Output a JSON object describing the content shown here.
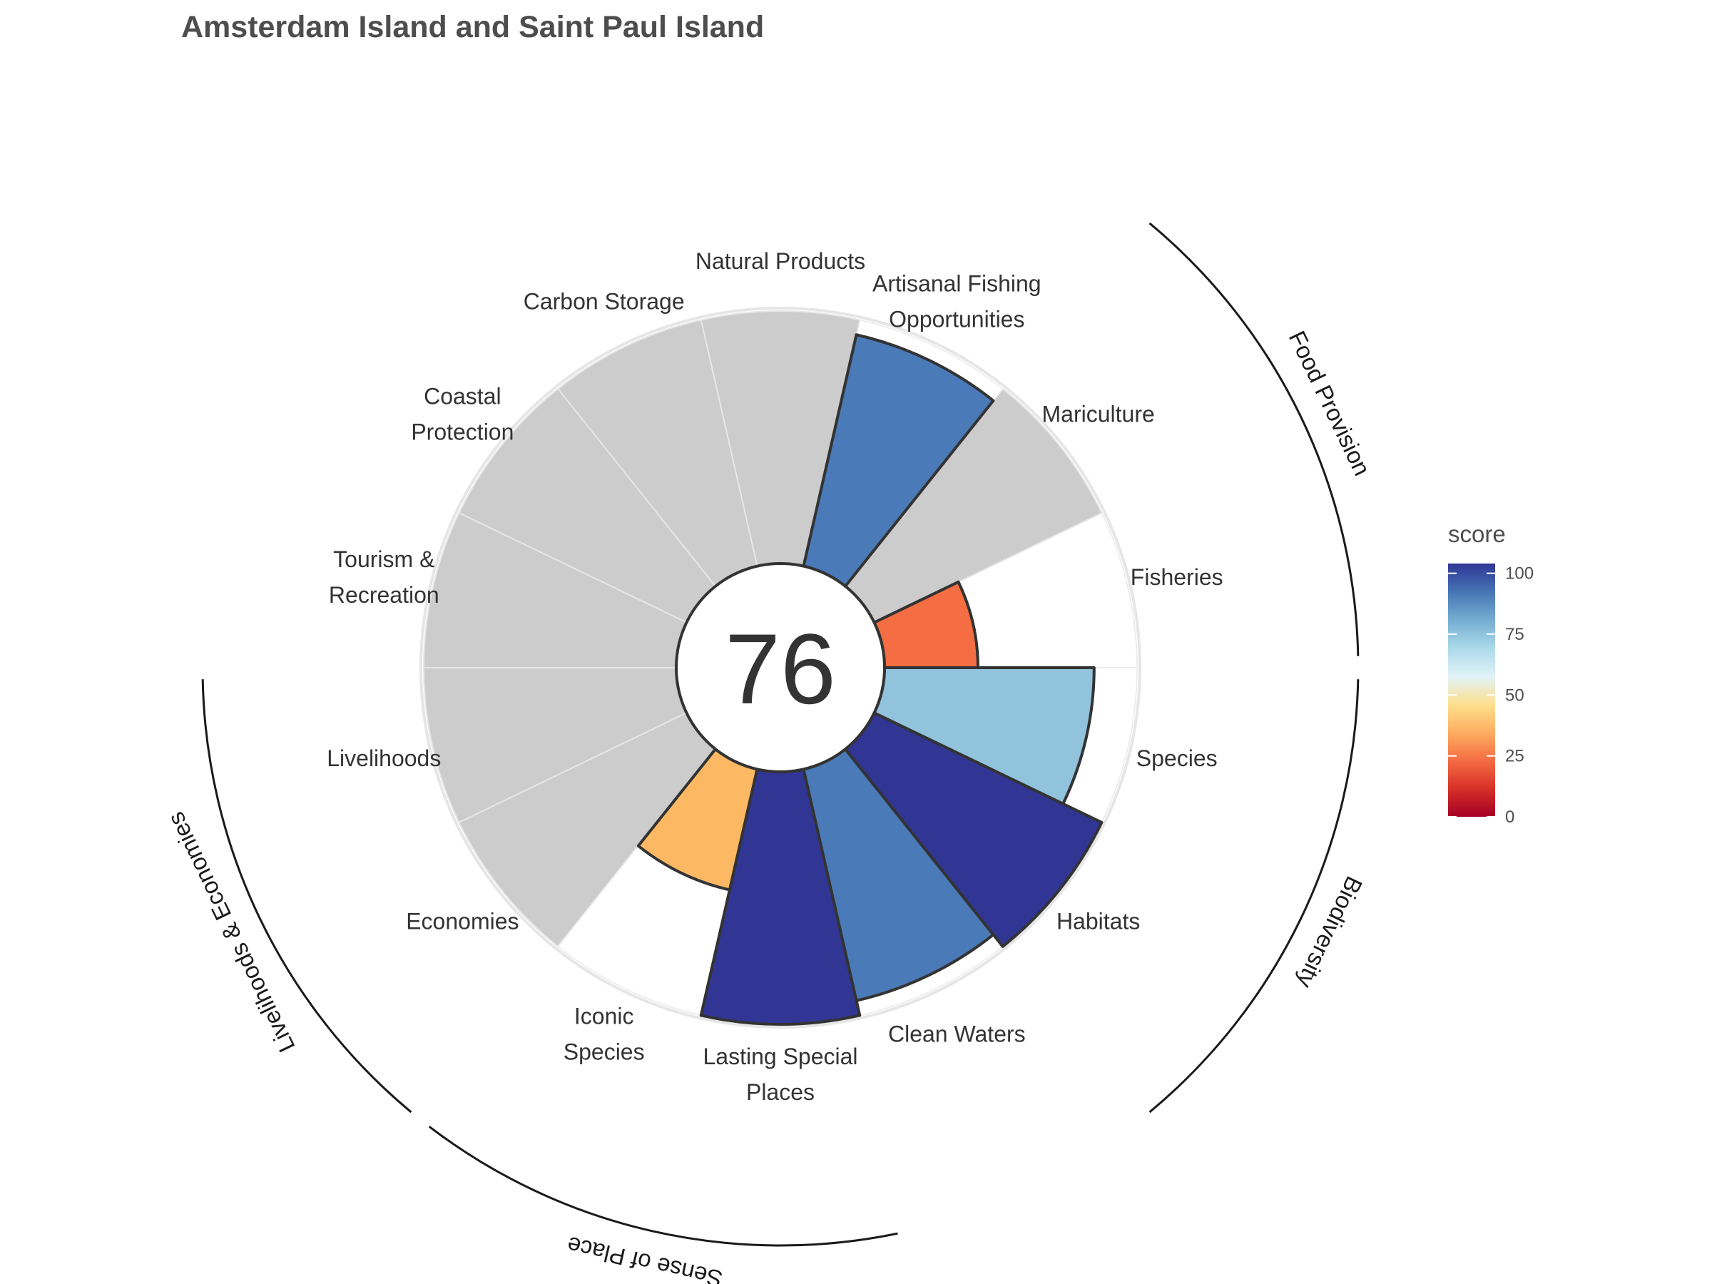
{
  "chart_data": {
    "type": "polar-bar",
    "title": "Amsterdam Island and Saint Paul Island",
    "overall_score": "76",
    "max_score": 100,
    "missing_color": "#cccccc",
    "categories": [
      {
        "name": "Fisheries",
        "lines": [
          "Fisheries"
        ],
        "score": 37,
        "color": "#f46d43"
      },
      {
        "name": "Mariculture",
        "lines": [
          "Mariculture"
        ],
        "score": null,
        "color": null
      },
      {
        "name": "Artisanal Fishing Opportunities",
        "lines": [
          "Artisanal Fishing",
          "Opportunities"
        ],
        "score": 94,
        "color": "#4a7ab7"
      },
      {
        "name": "Natural Products",
        "lines": [
          "Natural Products"
        ],
        "score": null,
        "color": null
      },
      {
        "name": "Carbon Storage",
        "lines": [
          "Carbon Storage"
        ],
        "score": null,
        "color": null
      },
      {
        "name": "Coastal Protection",
        "lines": [
          "Coastal",
          "Protection"
        ],
        "score": null,
        "color": null
      },
      {
        "name": "Tourism & Recreation",
        "lines": [
          "Tourism &",
          "Recreation"
        ],
        "score": null,
        "color": null
      },
      {
        "name": "Livelihoods",
        "lines": [
          "Livelihoods"
        ],
        "score": null,
        "color": null
      },
      {
        "name": "Economies",
        "lines": [
          "Economies"
        ],
        "score": null,
        "color": null
      },
      {
        "name": "Iconic Species",
        "lines": [
          "Iconic",
          "Species"
        ],
        "score": 49,
        "color": "#fdb863"
      },
      {
        "name": "Lasting Special Places",
        "lines": [
          "Lasting Special",
          "Places"
        ],
        "score": 100,
        "color": "#313695"
      },
      {
        "name": "Clean Waters",
        "lines": [
          "Clean Waters"
        ],
        "score": 94,
        "color": "#4a7ab7"
      },
      {
        "name": "Habitats",
        "lines": [
          "Habitats"
        ],
        "score": 100,
        "color": "#313695"
      },
      {
        "name": "Species",
        "lines": [
          "Species"
        ],
        "score": 83,
        "color": "#91c3dd"
      }
    ],
    "groups": [
      {
        "name": "Food Provision",
        "members": [
          "Fisheries",
          "Mariculture"
        ]
      },
      {
        "name": "Biodiversity",
        "members": [
          "Habitats",
          "Species"
        ]
      },
      {
        "name": "Sense of Place",
        "members": [
          "Iconic Species",
          "Lasting Special Places"
        ]
      },
      {
        "name": "Livelihoods & Economies",
        "members": [
          "Livelihoods",
          "Economies"
        ]
      }
    ],
    "legend": {
      "title": "score",
      "position": "right",
      "ticks": [
        0,
        25,
        50,
        75,
        100
      ],
      "tick_labels": [
        "0",
        "25",
        "50",
        "75",
        "100"
      ],
      "gradient": [
        "#a50026",
        "#d73027",
        "#f46d43",
        "#fdae61",
        "#fee090",
        "#e0f3f8",
        "#abd9e9",
        "#74add1",
        "#4575b4",
        "#313695"
      ]
    }
  }
}
